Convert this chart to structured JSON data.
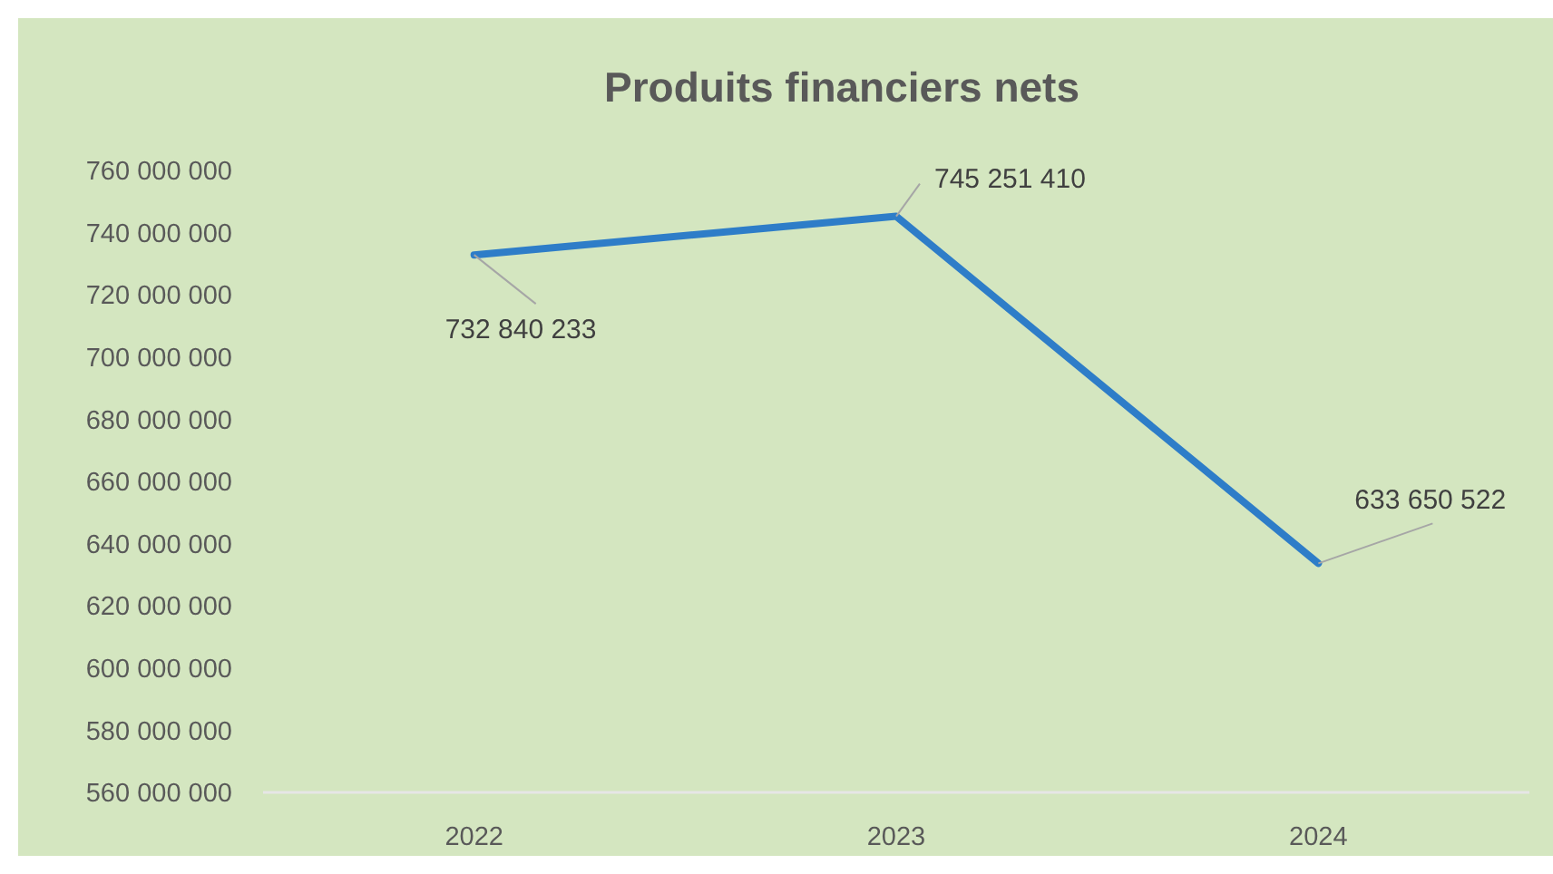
{
  "chart_data": {
    "type": "line",
    "title": "Produits financiers nets",
    "categories": [
      "2022",
      "2023",
      "2024"
    ],
    "series": [
      {
        "color": "#2e7dc8",
        "values": [
          732840233,
          745251410,
          633650522
        ]
      }
    ],
    "ylim": [
      560000000,
      760000000
    ],
    "yticks": [
      {
        "value": 560000000,
        "label": "560 000 000"
      },
      {
        "value": 580000000,
        "label": "580 000 000"
      },
      {
        "value": 600000000,
        "label": "600 000 000"
      },
      {
        "value": 620000000,
        "label": "620 000 000"
      },
      {
        "value": 640000000,
        "label": "640 000 000"
      },
      {
        "value": 660000000,
        "label": "660 000 000"
      },
      {
        "value": 680000000,
        "label": "680 000 000"
      },
      {
        "value": 700000000,
        "label": "700 000 000"
      },
      {
        "value": 720000000,
        "label": "720 000 000"
      },
      {
        "value": 740000000,
        "label": "740 000 000"
      },
      {
        "value": 760000000,
        "label": "760 000 000"
      }
    ],
    "grid": false,
    "marker": "none",
    "line_style": "solid",
    "data_labels": true
  }
}
